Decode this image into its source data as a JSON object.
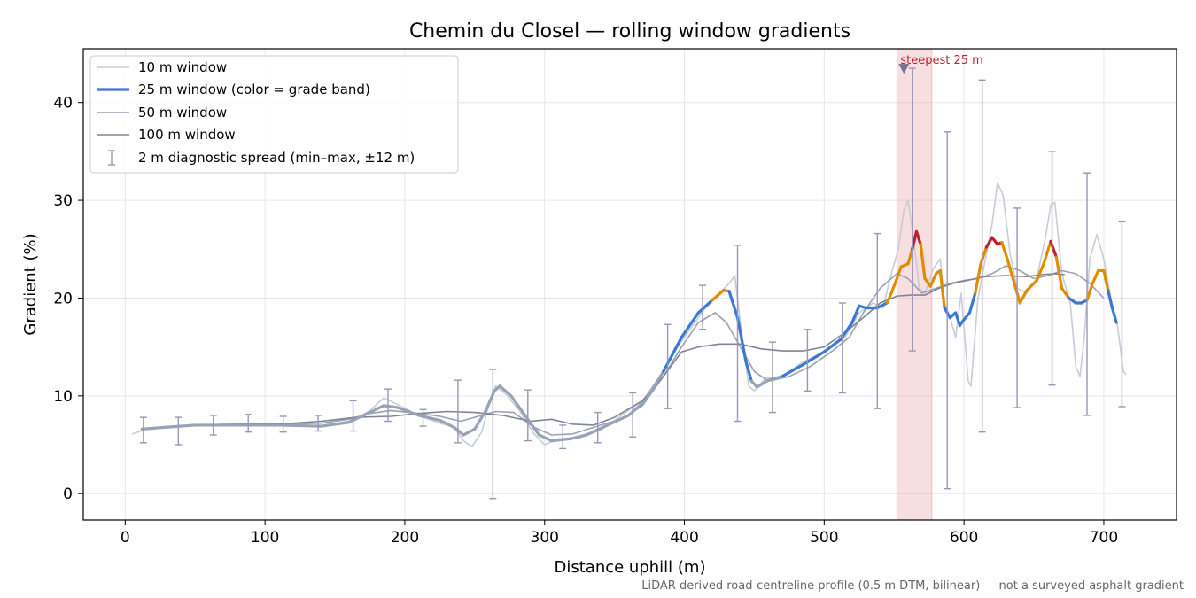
{
  "chart_data": {
    "type": "line",
    "title": "Chemin du Closel — rolling window gradients",
    "xlabel": "Distance uphill (m)",
    "ylabel": "Gradient (%)",
    "xlim": [
      -30,
      752
    ],
    "ylim": [
      -2.7,
      45.5
    ],
    "xticks": [
      0,
      100,
      200,
      300,
      400,
      500,
      600,
      700
    ],
    "yticks": [
      0,
      10,
      20,
      30,
      40
    ],
    "grid": true,
    "legend_position": "top-left",
    "footnote": "LiDAR-derived road-centreline profile (0.5 m DTM, bilinear) — not a surveyed asphalt gradient",
    "highlight": {
      "x_start": 552,
      "x_end": 577,
      "color": "#e8a0a8",
      "marker_x": 557,
      "marker_y": 43.5,
      "marker_color": "#7a6e94",
      "label": "steepest 25 m",
      "label_color": "#c0202e"
    },
    "series": [
      {
        "name": "10 m window",
        "color": "#c8ccd5",
        "points": [
          [
            5,
            6.1
          ],
          [
            15,
            6.6
          ],
          [
            30,
            6.8
          ],
          [
            50,
            7.0
          ],
          [
            80,
            7.1
          ],
          [
            110,
            7.0
          ],
          [
            140,
            6.8
          ],
          [
            160,
            7.2
          ],
          [
            175,
            8.5
          ],
          [
            185,
            9.8
          ],
          [
            195,
            9.1
          ],
          [
            210,
            8.0
          ],
          [
            225,
            7.2
          ],
          [
            235,
            6.8
          ],
          [
            242,
            5.4
          ],
          [
            248,
            4.8
          ],
          [
            255,
            6.3
          ],
          [
            260,
            9.0
          ],
          [
            265,
            11.0
          ],
          [
            272,
            10.2
          ],
          [
            282,
            8.5
          ],
          [
            292,
            6.2
          ],
          [
            300,
            5.0
          ],
          [
            310,
            5.6
          ],
          [
            325,
            5.7
          ],
          [
            340,
            6.5
          ],
          [
            355,
            8.0
          ],
          [
            370,
            9.5
          ],
          [
            385,
            12.5
          ],
          [
            395,
            15.0
          ],
          [
            405,
            17.0
          ],
          [
            415,
            19.0
          ],
          [
            425,
            20.5
          ],
          [
            432,
            21.5
          ],
          [
            436,
            22.3
          ],
          [
            440,
            17.5
          ],
          [
            446,
            11.0
          ],
          [
            450,
            10.5
          ],
          [
            458,
            11.8
          ],
          [
            470,
            12.0
          ],
          [
            485,
            13.5
          ],
          [
            500,
            14.5
          ],
          [
            515,
            16.0
          ],
          [
            525,
            18.5
          ],
          [
            535,
            19.5
          ],
          [
            542,
            19.0
          ],
          [
            548,
            22.5
          ],
          [
            553,
            25.0
          ],
          [
            557,
            29.0
          ],
          [
            560,
            30.0
          ],
          [
            564,
            26.0
          ],
          [
            568,
            21.0
          ],
          [
            572,
            20.5
          ],
          [
            578,
            23.0
          ],
          [
            583,
            24.0
          ],
          [
            586,
            19.5
          ],
          [
            590,
            18.0
          ],
          [
            594,
            16.0
          ],
          [
            598,
            20.5
          ],
          [
            603,
            11.5
          ],
          [
            605,
            11.0
          ],
          [
            610,
            20.0
          ],
          [
            616,
            24.5
          ],
          [
            620,
            27.5
          ],
          [
            624,
            31.8
          ],
          [
            628,
            30.5
          ],
          [
            633,
            24.5
          ],
          [
            638,
            21.0
          ],
          [
            645,
            20.5
          ],
          [
            652,
            22.0
          ],
          [
            658,
            26.0
          ],
          [
            662,
            29.5
          ],
          [
            665,
            29.8
          ],
          [
            670,
            22.5
          ],
          [
            676,
            19.5
          ],
          [
            680,
            13.0
          ],
          [
            683,
            12.0
          ],
          [
            686,
            16.0
          ],
          [
            690,
            24.0
          ],
          [
            695,
            26.5
          ],
          [
            700,
            24.0
          ],
          [
            705,
            20.0
          ],
          [
            710,
            17.0
          ],
          [
            714,
            12.5
          ],
          [
            716,
            12.2
          ]
        ]
      },
      {
        "name": "25 m window (color = grade band)",
        "color": "#3b78d4",
        "width": 3.2,
        "band_colors": {
          "low": "#97a3b6",
          "moderate": "#3b78d4",
          "steep": "#e08c00",
          "very_steep": "#c0202e"
        },
        "band_thresholds": [
          12,
          20,
          25
        ],
        "points": [
          [
            12,
            6.6
          ],
          [
            30,
            6.8
          ],
          [
            50,
            7.0
          ],
          [
            80,
            7.0
          ],
          [
            110,
            7.0
          ],
          [
            140,
            6.9
          ],
          [
            160,
            7.3
          ],
          [
            175,
            8.3
          ],
          [
            185,
            9.0
          ],
          [
            195,
            8.8
          ],
          [
            210,
            8.0
          ],
          [
            225,
            7.5
          ],
          [
            235,
            6.8
          ],
          [
            242,
            6.0
          ],
          [
            250,
            6.6
          ],
          [
            258,
            8.5
          ],
          [
            264,
            10.5
          ],
          [
            268,
            11.0
          ],
          [
            276,
            10.0
          ],
          [
            286,
            8.0
          ],
          [
            296,
            6.0
          ],
          [
            305,
            5.4
          ],
          [
            318,
            5.6
          ],
          [
            330,
            6.0
          ],
          [
            345,
            7.0
          ],
          [
            360,
            8.0
          ],
          [
            372,
            9.5
          ],
          [
            385,
            12.5
          ],
          [
            398,
            16.0
          ],
          [
            410,
            18.5
          ],
          [
            420,
            19.8
          ],
          [
            428,
            20.8
          ],
          [
            432,
            20.7
          ],
          [
            438,
            18.0
          ],
          [
            444,
            13.5
          ],
          [
            448,
            11.5
          ],
          [
            452,
            10.9
          ],
          [
            460,
            11.6
          ],
          [
            470,
            12.0
          ],
          [
            485,
            13.2
          ],
          [
            500,
            14.5
          ],
          [
            512,
            15.8
          ],
          [
            520,
            17.5
          ],
          [
            525,
            19.2
          ],
          [
            530,
            19.0
          ],
          [
            538,
            19.0
          ],
          [
            545,
            19.5
          ],
          [
            548,
            20.5
          ],
          [
            552,
            22.0
          ],
          [
            555,
            23.2
          ],
          [
            560,
            23.5
          ],
          [
            563,
            25.0
          ],
          [
            566,
            26.8
          ],
          [
            569,
            25.5
          ],
          [
            572,
            22.0
          ],
          [
            576,
            21.2
          ],
          [
            580,
            22.5
          ],
          [
            583,
            22.8
          ],
          [
            586,
            19.0
          ],
          [
            590,
            18.0
          ],
          [
            594,
            18.5
          ],
          [
            597,
            17.2
          ],
          [
            600,
            17.8
          ],
          [
            604,
            18.5
          ],
          [
            608,
            20.5
          ],
          [
            612,
            23.5
          ],
          [
            616,
            25.2
          ],
          [
            620,
            26.2
          ],
          [
            624,
            25.5
          ],
          [
            627,
            25.7
          ],
          [
            631,
            24.0
          ],
          [
            636,
            21.5
          ],
          [
            640,
            19.5
          ],
          [
            645,
            20.8
          ],
          [
            652,
            21.8
          ],
          [
            657,
            23.5
          ],
          [
            662,
            25.8
          ],
          [
            666,
            24.2
          ],
          [
            670,
            21.0
          ],
          [
            675,
            20.0
          ],
          [
            680,
            19.5
          ],
          [
            684,
            19.5
          ],
          [
            688,
            19.8
          ],
          [
            692,
            21.5
          ],
          [
            696,
            22.8
          ],
          [
            700,
            22.8
          ],
          [
            703,
            20.8
          ],
          [
            706,
            19.0
          ],
          [
            709,
            17.5
          ]
        ]
      },
      {
        "name": "50 m window",
        "color": "#9aa1b0",
        "points": [
          [
            25,
            6.8
          ],
          [
            50,
            7.0
          ],
          [
            80,
            7.1
          ],
          [
            110,
            7.1
          ],
          [
            140,
            7.2
          ],
          [
            160,
            7.6
          ],
          [
            175,
            8.2
          ],
          [
            190,
            8.5
          ],
          [
            210,
            8.2
          ],
          [
            225,
            7.9
          ],
          [
            240,
            7.4
          ],
          [
            255,
            8.0
          ],
          [
            265,
            8.4
          ],
          [
            278,
            8.3
          ],
          [
            292,
            6.8
          ],
          [
            305,
            6.0
          ],
          [
            320,
            6.1
          ],
          [
            340,
            7.0
          ],
          [
            355,
            7.6
          ],
          [
            370,
            9.0
          ],
          [
            385,
            12.0
          ],
          [
            398,
            15.0
          ],
          [
            410,
            17.5
          ],
          [
            422,
            18.5
          ],
          [
            430,
            17.5
          ],
          [
            440,
            15.0
          ],
          [
            450,
            12.5
          ],
          [
            460,
            11.5
          ],
          [
            475,
            12.0
          ],
          [
            490,
            13.0
          ],
          [
            505,
            14.5
          ],
          [
            518,
            16.0
          ],
          [
            528,
            18.5
          ],
          [
            540,
            21.0
          ],
          [
            552,
            22.5
          ],
          [
            560,
            22.0
          ],
          [
            570,
            20.5
          ],
          [
            580,
            21.0
          ],
          [
            590,
            21.5
          ],
          [
            600,
            21.8
          ],
          [
            610,
            22.0
          ],
          [
            620,
            22.5
          ],
          [
            630,
            23.3
          ],
          [
            640,
            22.8
          ],
          [
            650,
            22.0
          ],
          [
            660,
            22.3
          ],
          [
            670,
            22.8
          ],
          [
            680,
            22.5
          ],
          [
            690,
            21.5
          ],
          [
            700,
            20.0
          ]
        ]
      },
      {
        "name": "100 m window",
        "color": "#7d8596",
        "points": [
          [
            50,
            7.0
          ],
          [
            80,
            7.1
          ],
          [
            110,
            7.1
          ],
          [
            140,
            7.4
          ],
          [
            165,
            7.8
          ],
          [
            190,
            7.9
          ],
          [
            210,
            8.2
          ],
          [
            230,
            8.4
          ],
          [
            250,
            8.3
          ],
          [
            270,
            8.0
          ],
          [
            290,
            7.4
          ],
          [
            305,
            7.6
          ],
          [
            320,
            7.1
          ],
          [
            335,
            7.0
          ],
          [
            350,
            7.8
          ],
          [
            370,
            9.5
          ],
          [
            385,
            12.0
          ],
          [
            398,
            14.5
          ],
          [
            410,
            15.0
          ],
          [
            425,
            15.3
          ],
          [
            440,
            15.3
          ],
          [
            455,
            14.8
          ],
          [
            470,
            14.6
          ],
          [
            485,
            14.6
          ],
          [
            500,
            15.0
          ],
          [
            515,
            16.5
          ],
          [
            528,
            18.0
          ],
          [
            540,
            19.5
          ],
          [
            552,
            20.2
          ],
          [
            562,
            20.3
          ],
          [
            572,
            20.3
          ],
          [
            582,
            21.0
          ],
          [
            592,
            21.5
          ],
          [
            602,
            21.8
          ],
          [
            615,
            22.2
          ],
          [
            630,
            22.3
          ],
          [
            645,
            22.2
          ],
          [
            655,
            22.4
          ],
          [
            665,
            22.5
          ],
          [
            672,
            22.4
          ]
        ]
      }
    ],
    "spread": {
      "name": "2 m diagnostic spread (min–max, ±12 m)",
      "color": "#9a96b6",
      "bars": [
        [
          13,
          5.2,
          7.8
        ],
        [
          38,
          5.0,
          7.8
        ],
        [
          63,
          6.0,
          8.0
        ],
        [
          88,
          6.3,
          8.1
        ],
        [
          113,
          6.3,
          7.9
        ],
        [
          138,
          6.4,
          8.0
        ],
        [
          163,
          6.4,
          9.5
        ],
        [
          188,
          7.4,
          10.7
        ],
        [
          213,
          6.9,
          8.6
        ],
        [
          238,
          5.2,
          11.6
        ],
        [
          263,
          -0.5,
          12.7
        ],
        [
          288,
          5.4,
          10.6
        ],
        [
          313,
          4.6,
          7.0
        ],
        [
          338,
          5.2,
          8.3
        ],
        [
          363,
          5.8,
          10.3
        ],
        [
          388,
          8.7,
          17.3
        ],
        [
          413,
          16.8,
          21.3
        ],
        [
          438,
          7.4,
          25.4
        ],
        [
          463,
          8.3,
          15.5
        ],
        [
          488,
          10.5,
          16.8
        ],
        [
          513,
          10.3,
          19.5
        ],
        [
          538,
          8.7,
          26.6
        ],
        [
          563,
          14.6,
          43.5
        ],
        [
          588,
          0.5,
          37.0
        ],
        [
          613,
          6.3,
          42.3
        ],
        [
          638,
          8.8,
          29.2
        ],
        [
          663,
          11.1,
          35.0
        ],
        [
          688,
          8.0,
          32.8
        ],
        [
          713,
          8.9,
          27.8
        ]
      ]
    }
  }
}
